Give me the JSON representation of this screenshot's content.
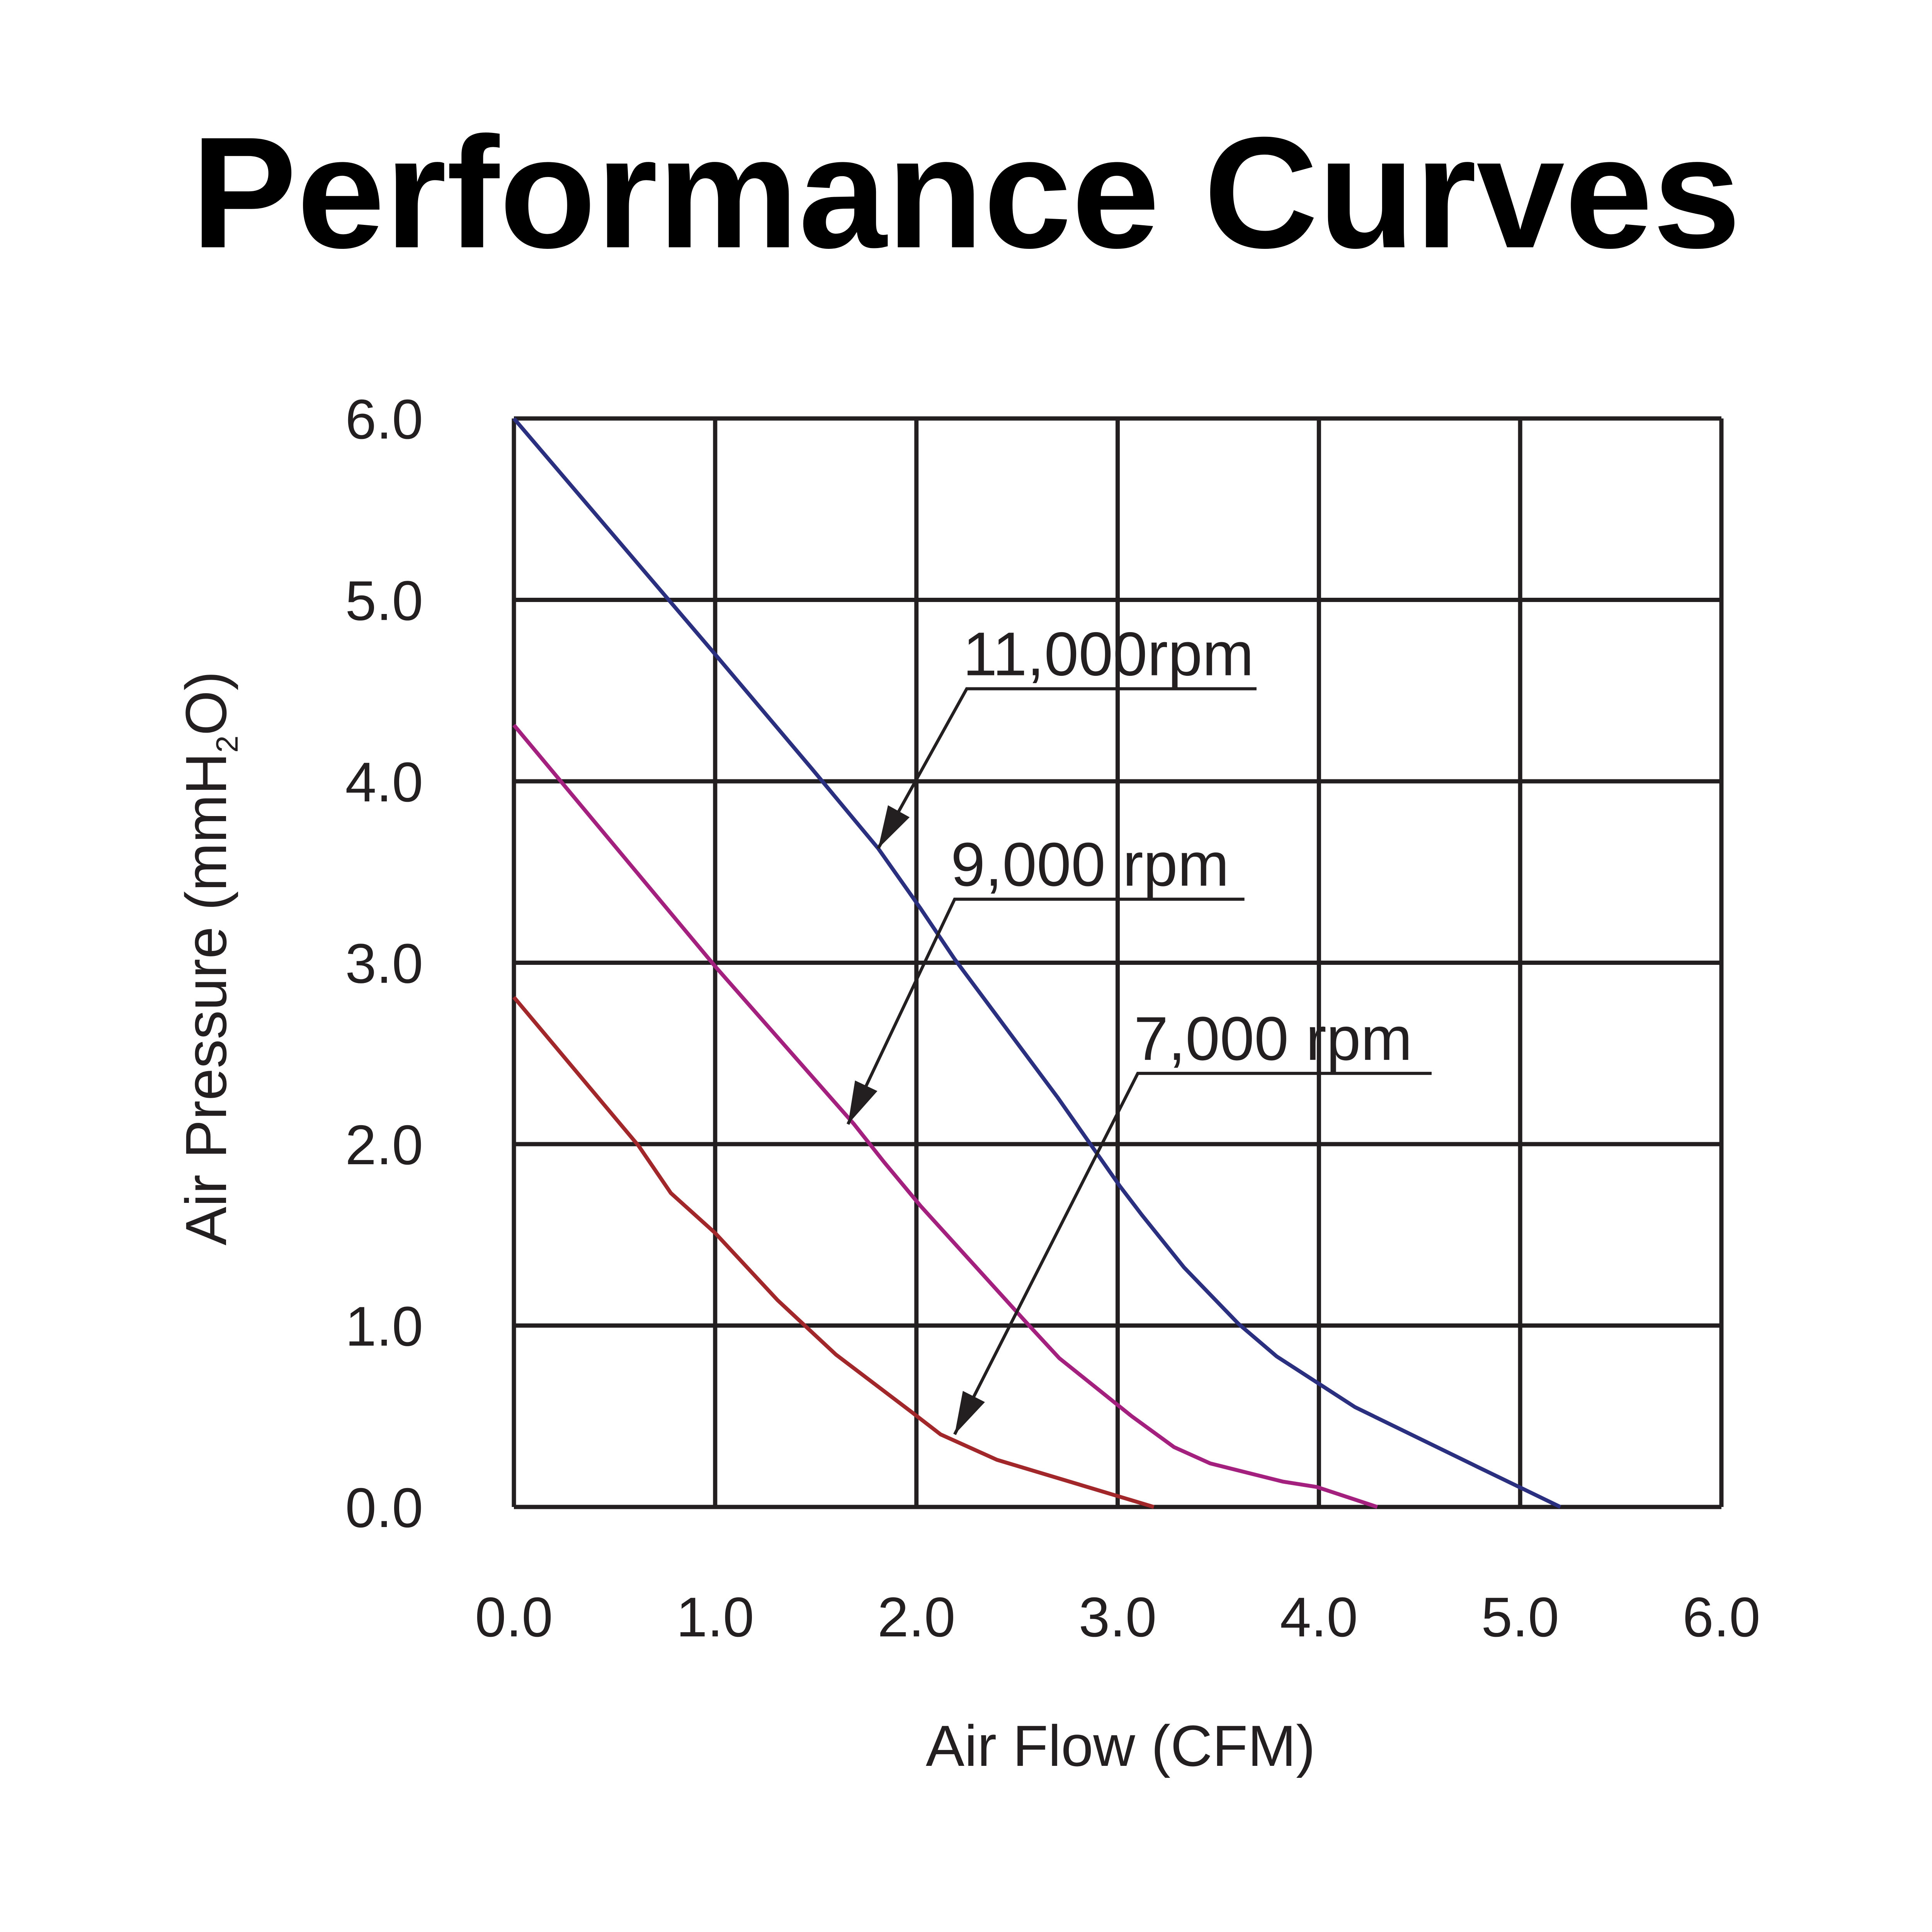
{
  "chart_data": {
    "type": "line",
    "title": "Performance Curves",
    "xlabel": "Air Flow (CFM)",
    "ylabel_main": "Air Pressure (mmH",
    "ylabel_sub": "2",
    "ylabel_end": "O)",
    "xlim": [
      0,
      6
    ],
    "ylim": [
      0,
      6
    ],
    "grid": true,
    "xticks": [
      "0.0",
      "1.0",
      "2.0",
      "3.0",
      "4.0",
      "5.0",
      "6.0"
    ],
    "yticks": [
      "0.0",
      "1.0",
      "2.0",
      "3.0",
      "4.0",
      "5.0",
      "6.0"
    ],
    "series": [
      {
        "name": "11,000rpm",
        "color": "#2b2f7f",
        "x": [
          0,
          1,
          1.48,
          1.81,
          2.02,
          2.19,
          2.7,
          3.01,
          3.12,
          3.33,
          3.6,
          3.79,
          4.18,
          4.79,
          5.2
        ],
        "y": [
          6.0,
          4.7,
          4.07,
          3.63,
          3.3,
          3.02,
          2.26,
          1.77,
          1.61,
          1.32,
          1.01,
          0.83,
          0.55,
          0.22,
          0
        ]
      },
      {
        "name": "9,000 rpm",
        "color": "#a3207f",
        "x": [
          0,
          1,
          1.69,
          1.84,
          2.02,
          2.56,
          2.71,
          3.07,
          3.28,
          3.46,
          3.82,
          3.99,
          4.29
        ],
        "y": [
          4.31,
          2.98,
          2.11,
          1.9,
          1.66,
          1.0,
          0.82,
          0.5,
          0.33,
          0.24,
          0.14,
          0.11,
          0
        ]
      },
      {
        "name": "7,000 rpm",
        "color": "#a2272a",
        "x": [
          0,
          0.62,
          0.78,
          1,
          1.31,
          1.6,
          1.98,
          2.12,
          2.4,
          2.67,
          3.18
        ],
        "y": [
          2.81,
          1.99,
          1.73,
          1.51,
          1.14,
          0.84,
          0.52,
          0.4,
          0.26,
          0.17,
          0
        ]
      }
    ],
    "annotations": [
      {
        "text": "11,000rpm",
        "tip": [
          1.81,
          3.63
        ],
        "elbow": [
          2.25,
          4.51
        ],
        "end": [
          3.69,
          4.51
        ]
      },
      {
        "text": "9,000 rpm",
        "tip": [
          1.66,
          2.11
        ],
        "elbow": [
          2.19,
          3.35
        ],
        "end": [
          3.63,
          3.35
        ]
      },
      {
        "text": "7,000 rpm",
        "tip": [
          2.19,
          0.4
        ],
        "elbow": [
          3.1,
          2.39
        ],
        "end": [
          4.56,
          2.39
        ]
      }
    ]
  }
}
